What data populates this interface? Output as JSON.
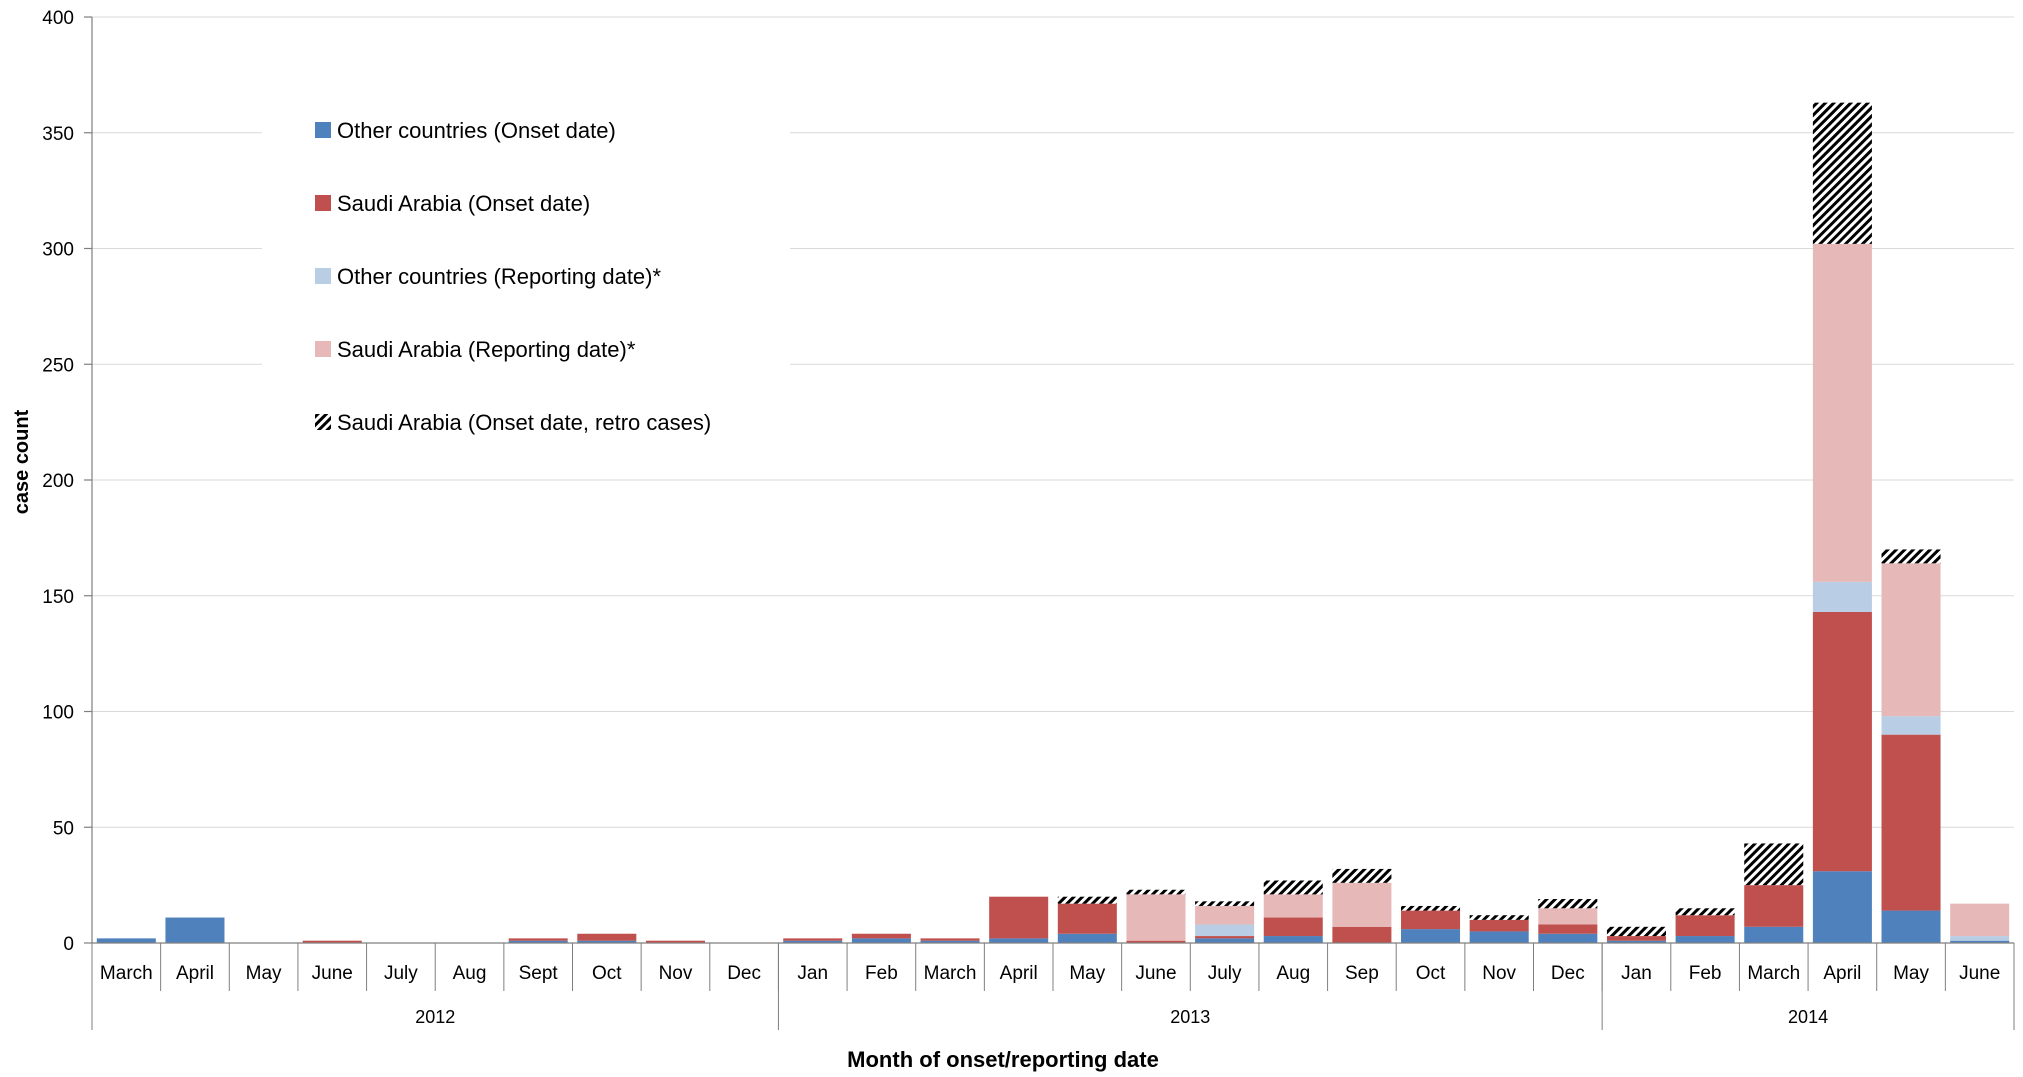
{
  "chart_data": {
    "type": "bar",
    "stacked": true,
    "title": "",
    "xlabel": "Month of onset/reporting date",
    "ylabel": "case count",
    "ylim": [
      0,
      400
    ],
    "yticks": [
      0,
      50,
      100,
      150,
      200,
      250,
      300,
      350,
      400
    ],
    "grid": true,
    "legend_position": "top-left",
    "categories": [
      "March",
      "April",
      "May",
      "June",
      "July",
      "Aug",
      "Sept",
      "Oct",
      "Nov",
      "Dec",
      "Jan",
      "Feb",
      "March",
      "April",
      "May",
      "June",
      "July",
      "Aug",
      "Sep",
      "Oct",
      "Nov",
      "Dec",
      "Jan",
      "Feb",
      "March",
      "April",
      "May",
      "June"
    ],
    "year_groups": [
      {
        "label": "2012",
        "count": 10
      },
      {
        "label": "2013",
        "count": 12
      },
      {
        "label": "2014",
        "count": 6
      }
    ],
    "series": [
      {
        "name": "Other countries (Onset date)",
        "color": "#4f81bd",
        "pattern": "solid",
        "values": [
          2,
          11,
          0,
          0,
          0,
          0,
          1,
          1,
          0,
          0,
          1,
          2,
          1,
          2,
          4,
          0,
          2,
          3,
          0,
          6,
          5,
          4,
          1,
          3,
          7,
          31,
          14,
          1
        ]
      },
      {
        "name": "Saudi Arabia (Onset date)",
        "color": "#c0504d",
        "pattern": "solid",
        "values": [
          0,
          0,
          0,
          1,
          0,
          0,
          1,
          3,
          1,
          0,
          1,
          2,
          1,
          18,
          13,
          1,
          1,
          8,
          7,
          8,
          5,
          4,
          2,
          9,
          18,
          112,
          76,
          0
        ]
      },
      {
        "name": "Other countries (Reporting date)*",
        "color": "#b9cde5",
        "pattern": "solid",
        "values": [
          0,
          0,
          0,
          0,
          0,
          0,
          0,
          0,
          0,
          0,
          0,
          0,
          0,
          0,
          0,
          0,
          5,
          0,
          0,
          0,
          0,
          0,
          0,
          0,
          0,
          13,
          8,
          2
        ]
      },
      {
        "name": "Saudi Arabia (Reporting date)*",
        "color": "#e6b9b8",
        "pattern": "solid",
        "values": [
          0,
          0,
          0,
          0,
          0,
          0,
          0,
          0,
          0,
          0,
          0,
          0,
          0,
          0,
          0,
          20,
          8,
          10,
          19,
          0,
          0,
          7,
          0,
          0,
          0,
          146,
          66,
          14
        ]
      },
      {
        "name": "Saudi Arabia (Onset date, retro cases)",
        "color": "#000000",
        "pattern": "hatch",
        "values": [
          0,
          0,
          0,
          0,
          0,
          0,
          0,
          0,
          0,
          0,
          0,
          0,
          0,
          0,
          3,
          2,
          2,
          6,
          6,
          2,
          2,
          4,
          4,
          3,
          18,
          61,
          6,
          0
        ]
      }
    ]
  }
}
